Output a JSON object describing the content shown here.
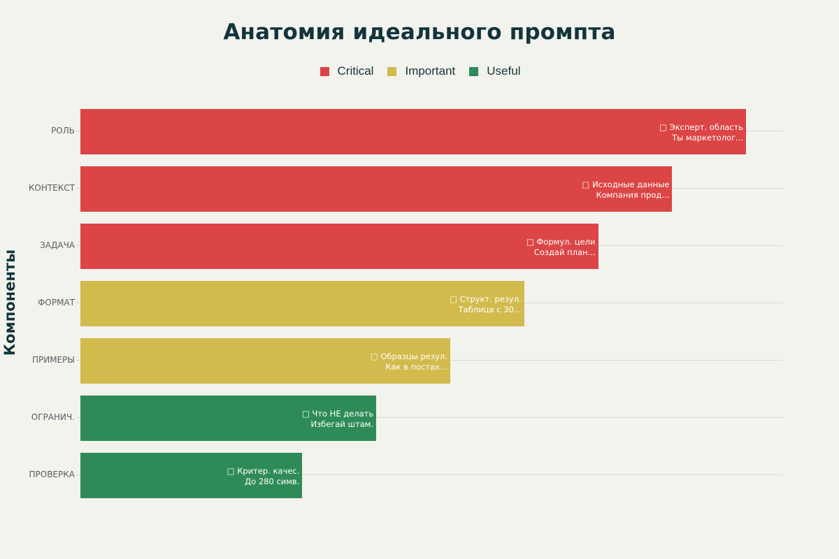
{
  "chart_data": {
    "type": "bar",
    "orientation": "horizontal",
    "title": "Анатомия идеального промпта",
    "xlabel": "",
    "ylabel": "Компоненты",
    "xlim": [
      0,
      9.5
    ],
    "grid": "horizontal lines per category",
    "legend_position": "top-center",
    "legend": [
      {
        "name": "Critical",
        "color": "#db4545"
      },
      {
        "name": "Important",
        "color": "#d2ba4c"
      },
      {
        "name": "Useful",
        "color": "#2e8b57"
      }
    ],
    "categories": [
      "РОЛЬ",
      "КОНТЕКСТ",
      "ЗАДАЧА",
      "ФОРМАТ",
      "ПРИМЕРЫ",
      "ОГРАНИЧ.",
      "ПРОВЕРКА"
    ],
    "values": [
      9,
      8,
      7,
      6,
      5,
      4,
      3
    ],
    "bars": [
      {
        "category": "РОЛЬ",
        "value": 9,
        "group": "Critical",
        "color": "#db4545",
        "icon": "□",
        "label_line1": "Эксперт. область",
        "label_line2": "Ты маркетолог..."
      },
      {
        "category": "КОНТЕКСТ",
        "value": 8,
        "group": "Critical",
        "color": "#db4545",
        "icon": "□",
        "label_line1": "Исходные данные",
        "label_line2": "Компания прод..."
      },
      {
        "category": "ЗАДАЧА",
        "value": 7,
        "group": "Critical",
        "color": "#db4545",
        "icon": "□",
        "label_line1": "Формул. цели",
        "label_line2": "Создай план..."
      },
      {
        "category": "ФОРМАТ",
        "value": 6,
        "group": "Important",
        "color": "#d2ba4c",
        "icon": "□",
        "label_line1": "Структ. резул.",
        "label_line2": "Таблица с 30..."
      },
      {
        "category": "ПРИМЕРЫ",
        "value": 5,
        "group": "Important",
        "color": "#d2ba4c",
        "icon": "□",
        "label_line1": "Образцы резул.",
        "label_line2": "Как в постах..."
      },
      {
        "category": "ОГРАНИЧ.",
        "value": 4,
        "group": "Useful",
        "color": "#2e8b57",
        "icon": "□",
        "label_line1": "Что НЕ делать",
        "label_line2": "Избегай штам."
      },
      {
        "category": "ПРОВЕРКА",
        "value": 3,
        "group": "Useful",
        "color": "#2e8b57",
        "icon": "□",
        "label_line1": "Критер. качес.",
        "label_line2": "До 280 симв."
      }
    ]
  }
}
